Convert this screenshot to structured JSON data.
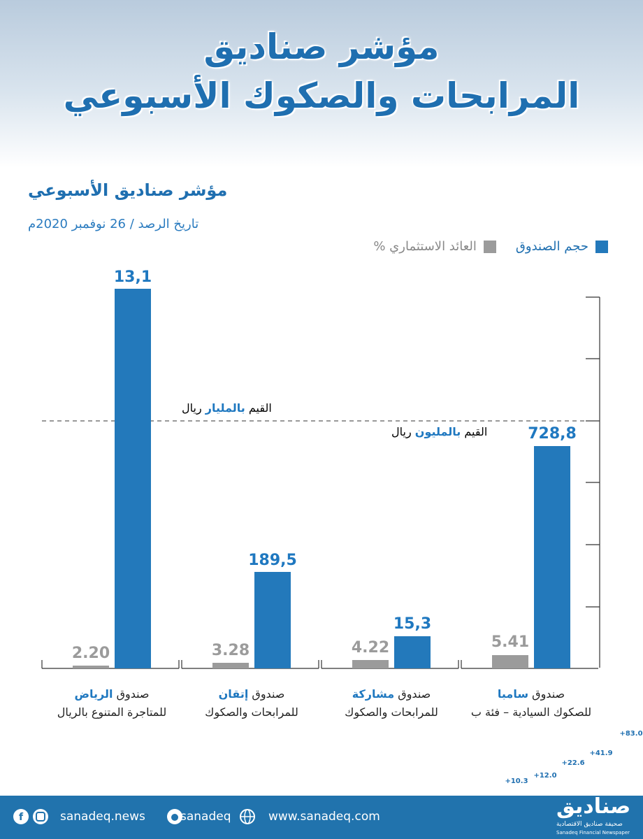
{
  "header": {
    "title_lines": [
      "مؤشر صناديق",
      "المرابحات والصكوك الأسبوعي"
    ]
  },
  "chart": {
    "subtitle": "مؤشر صناديق الأسبوعي",
    "date": "تاريخ الرصد / 26 نوفمبر 2020م",
    "legend": [
      "حجم الصندوق",
      "العائد الاستثماري %"
    ],
    "note_billion": [
      "القيم",
      "بالمليار",
      "ريال"
    ],
    "note_million": [
      "القيم",
      "بالمليون",
      "ريال"
    ],
    "funds": [
      {
        "prefix": "صندوق",
        "highlight": "الرياض",
        "line2": "للمتاجرة المتنوع بالريال",
        "size": "13,1",
        "return": "2.20"
      },
      {
        "prefix": "صندوق",
        "highlight": "إتقان",
        "line2": "للمرابحات والصكوك",
        "size": "189,5",
        "return": "3.28"
      },
      {
        "prefix": "صندوق",
        "highlight": "مشاركة",
        "line2": "للمرابحات والصكوك",
        "size": "15,3",
        "return": "4.22"
      },
      {
        "prefix": "صندوق",
        "highlight": "سامبا",
        "line2": "للصكوك السيادية – فئة ب",
        "size": "728,8",
        "return": "5.41"
      }
    ]
  },
  "footer": {
    "social": [
      "sanadeq.news",
      "sanadeq",
      "www.sanadeq.com"
    ],
    "logo": "صناديق",
    "logo_small": "Sanadeq",
    "tagline_ar": "صحيفة صناديق الاقتصادية",
    "tagline_en": "Sanadeq Financial Newspaper",
    "steps": [
      "+10.3",
      "+12.0",
      "+22.6",
      "+41.9",
      "+83.0"
    ]
  }
}
